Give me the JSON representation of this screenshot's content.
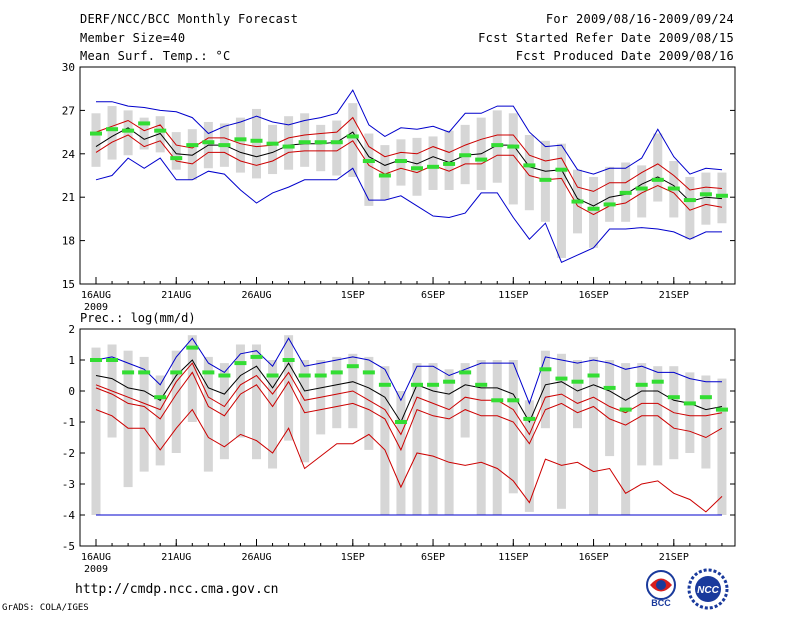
{
  "header": {
    "title": "DERF/NCC/BCC Monthly Forecast",
    "member": "Member Size=40",
    "variable": "Mean Surf. Temp.: °C",
    "period": "For 2009/08/16-2009/09/24",
    "refer": "Fcst Started Refer Date 2009/08/15",
    "produced": "Fcst Produced Date 2009/08/16"
  },
  "footer": {
    "url": "http://cmdp.ncc.cma.gov.cn",
    "credit": "GrADS: COLA/IGES",
    "logo_left": "BCC",
    "logo_right": "NCC"
  },
  "colors": {
    "envelope": "#0000cc",
    "spread": "#cc0000",
    "mean": "#000000",
    "obs": "#33dd33",
    "box": "#d6d6d6"
  },
  "chart_data": [
    {
      "type": "line",
      "title": "Mean Surf. Temp.: °C",
      "ylim": [
        15,
        30
      ],
      "yticks": [
        15,
        18,
        21,
        24,
        27,
        30
      ],
      "xticks": [
        {
          "day": 0,
          "label": "16AUG",
          "sub": "2009"
        },
        {
          "day": 5,
          "label": "21AUG"
        },
        {
          "day": 10,
          "label": "26AUG"
        },
        {
          "day": 16,
          "label": "1SEP"
        },
        {
          "day": 21,
          "label": "6SEP"
        },
        {
          "day": 26,
          "label": "11SEP"
        },
        {
          "day": 31,
          "label": "16SEP"
        },
        {
          "day": 36,
          "label": "21SEP"
        }
      ],
      "n_days": 40,
      "series": [
        {
          "name": "max",
          "color": "#0000cc",
          "values": [
            27.6,
            27.6,
            27.3,
            27.2,
            27.0,
            26.9,
            26.5,
            25.4,
            25.9,
            26.2,
            26.6,
            26.2,
            26.0,
            26.3,
            26.5,
            26.8,
            28.4,
            26.0,
            25.2,
            25.8,
            25.7,
            25.9,
            25.5,
            26.8,
            26.8,
            27.3,
            27.3,
            25.5,
            24.5,
            24.6,
            22.9,
            22.6,
            23.0,
            23.0,
            23.7,
            25.7,
            23.8,
            22.6,
            23.0,
            22.9
          ]
        },
        {
          "name": "upper",
          "color": "#cc0000",
          "values": [
            25.5,
            25.9,
            26.3,
            25.6,
            26.0,
            24.6,
            24.4,
            25.1,
            25.1,
            24.7,
            24.5,
            24.6,
            25.1,
            25.3,
            25.4,
            25.5,
            26.5,
            24.5,
            23.8,
            24.1,
            24.0,
            24.5,
            24.1,
            24.6,
            25.0,
            25.3,
            25.3,
            23.9,
            23.5,
            23.7,
            21.7,
            21.4,
            22.0,
            22.0,
            22.7,
            23.3,
            22.5,
            21.5,
            21.7,
            21.6
          ]
        },
        {
          "name": "mean",
          "color": "#000000",
          "values": [
            24.5,
            25.2,
            25.8,
            25.0,
            25.4,
            24.0,
            23.9,
            24.6,
            24.6,
            24.1,
            23.8,
            24.1,
            24.6,
            24.7,
            24.7,
            24.8,
            25.5,
            23.8,
            23.2,
            23.6,
            23.3,
            23.8,
            23.4,
            23.9,
            24.0,
            24.6,
            24.6,
            23.1,
            22.8,
            22.9,
            20.9,
            20.4,
            21.0,
            21.2,
            21.9,
            22.4,
            21.8,
            20.7,
            21.0,
            20.9
          ]
        },
        {
          "name": "lower",
          "color": "#cc0000",
          "values": [
            24.1,
            24.8,
            25.3,
            24.5,
            24.9,
            23.5,
            23.3,
            24.1,
            24.1,
            23.5,
            23.2,
            23.5,
            24.1,
            24.2,
            24.2,
            24.2,
            24.9,
            23.2,
            22.6,
            23.0,
            22.7,
            23.2,
            22.8,
            23.3,
            23.3,
            23.9,
            23.9,
            22.5,
            22.2,
            22.3,
            20.4,
            19.8,
            20.4,
            20.6,
            21.3,
            21.8,
            21.3,
            20.1,
            20.5,
            20.3
          ]
        },
        {
          "name": "min",
          "color": "#0000cc",
          "values": [
            22.2,
            22.5,
            23.7,
            23.0,
            23.7,
            22.2,
            22.2,
            22.8,
            22.6,
            21.5,
            20.6,
            21.3,
            21.7,
            22.2,
            22.2,
            22.2,
            23.0,
            20.8,
            20.8,
            21.1,
            20.4,
            19.7,
            19.6,
            19.9,
            21.3,
            21.3,
            19.6,
            18.1,
            19.2,
            16.5,
            17.0,
            17.5,
            18.8,
            18.8,
            18.9,
            18.8,
            18.6,
            18.1,
            18.6,
            18.6
          ]
        },
        {
          "name": "obs",
          "color": "#33dd33",
          "values": [
            25.4,
            25.7,
            25.6,
            26.1,
            25.6,
            23.7,
            24.6,
            24.8,
            24.6,
            25.0,
            24.9,
            24.7,
            24.5,
            24.8,
            24.8,
            24.8,
            25.2,
            23.5,
            22.5,
            23.5,
            23.0,
            23.1,
            23.3,
            23.9,
            23.6,
            24.6,
            24.5,
            23.2,
            22.2,
            22.9,
            20.7,
            20.2,
            20.5,
            21.3,
            21.6,
            22.2,
            21.6,
            20.8,
            21.2,
            21.1
          ]
        },
        {
          "name": "box_hi",
          "color": "#d6d6d6",
          "values": [
            26.8,
            27.3,
            27.0,
            26.5,
            26.6,
            25.5,
            25.7,
            26.2,
            26.1,
            26.5,
            27.1,
            26.0,
            26.6,
            26.8,
            26.0,
            26.3,
            27.5,
            25.4,
            24.6,
            25.0,
            25.1,
            25.2,
            25.6,
            26.0,
            26.5,
            27.0,
            26.8,
            25.3,
            24.9,
            24.7,
            22.9,
            22.4,
            23.1,
            23.4,
            23.2,
            25.4,
            23.5,
            22.4,
            22.7,
            22.7
          ]
        },
        {
          "name": "box_lo",
          "color": "#d6d6d6",
          "values": [
            23.1,
            23.6,
            23.9,
            24.3,
            24.1,
            22.9,
            22.2,
            23.0,
            23.1,
            22.7,
            22.3,
            22.6,
            22.9,
            23.1,
            22.8,
            22.5,
            22.4,
            20.4,
            20.8,
            21.8,
            21.1,
            21.5,
            21.5,
            21.9,
            21.5,
            22.0,
            20.5,
            20.1,
            19.3,
            16.8,
            18.5,
            17.5,
            19.3,
            19.3,
            19.6,
            20.7,
            19.6,
            18.1,
            19.1,
            19.2
          ]
        }
      ]
    },
    {
      "type": "line",
      "title": "Prec.: log(mm/d)",
      "ylim": [
        -5,
        2
      ],
      "yticks": [
        -5,
        -4,
        -3,
        -2,
        -1,
        0,
        1,
        2
      ],
      "xticks": [
        {
          "day": 0,
          "label": "16AUG",
          "sub": "2009"
        },
        {
          "day": 5,
          "label": "21AUG"
        },
        {
          "day": 10,
          "label": "26AUG"
        },
        {
          "day": 16,
          "label": "1SEP"
        },
        {
          "day": 21,
          "label": "6SEP"
        },
        {
          "day": 26,
          "label": "11SEP"
        },
        {
          "day": 31,
          "label": "16SEP"
        },
        {
          "day": 36,
          "label": "21SEP"
        }
      ],
      "n_days": 40,
      "series": [
        {
          "name": "max",
          "color": "#0000cc",
          "values": [
            1.0,
            1.1,
            0.9,
            0.7,
            0.2,
            1.1,
            1.7,
            0.9,
            0.6,
            1.2,
            1.3,
            0.8,
            1.7,
            0.8,
            0.9,
            1.0,
            1.1,
            1.0,
            0.7,
            -0.3,
            0.8,
            0.8,
            0.5,
            0.7,
            0.9,
            0.9,
            0.9,
            -0.4,
            1.1,
            1.0,
            0.9,
            1.0,
            0.9,
            0.7,
            0.8,
            0.6,
            0.6,
            0.4,
            0.3,
            0.3
          ]
        },
        {
          "name": "upper",
          "color": "#cc0000",
          "values": [
            0.2,
            0.0,
            -0.2,
            -0.4,
            -0.6,
            0.3,
            0.9,
            -0.2,
            -0.5,
            0.2,
            0.5,
            -0.1,
            0.6,
            -0.3,
            -0.2,
            -0.1,
            0.0,
            -0.3,
            -0.6,
            -1.4,
            -0.2,
            -0.4,
            -0.6,
            -0.2,
            -0.3,
            -0.3,
            -0.6,
            -1.4,
            -0.2,
            -0.1,
            -0.4,
            -0.2,
            -0.5,
            -0.7,
            -0.4,
            -0.4,
            -0.7,
            -0.8,
            -0.8,
            -0.7
          ]
        },
        {
          "name": "mean",
          "color": "#000000",
          "values": [
            0.5,
            0.4,
            0.1,
            0.0,
            -0.3,
            0.5,
            1.0,
            0.1,
            -0.1,
            0.5,
            0.8,
            0.1,
            0.9,
            0.0,
            0.1,
            0.2,
            0.3,
            0.1,
            -0.2,
            -1.0,
            0.2,
            0.0,
            -0.1,
            0.2,
            0.1,
            0.1,
            -0.1,
            -1.0,
            0.2,
            0.3,
            0.0,
            0.2,
            0.0,
            -0.3,
            0.0,
            0.0,
            -0.3,
            -0.4,
            -0.6,
            -0.5
          ]
        },
        {
          "name": "lower",
          "color": "#cc0000",
          "values": [
            0.1,
            -0.1,
            -0.4,
            -0.5,
            -0.9,
            -0.1,
            0.6,
            -0.5,
            -0.8,
            -0.1,
            0.2,
            -0.5,
            0.3,
            -0.7,
            -0.6,
            -0.5,
            -0.4,
            -0.6,
            -0.9,
            -1.9,
            -0.6,
            -0.8,
            -0.9,
            -0.6,
            -0.8,
            -0.8,
            -1.0,
            -1.7,
            -0.6,
            -0.4,
            -0.7,
            -0.5,
            -0.9,
            -1.1,
            -0.8,
            -0.8,
            -1.2,
            -1.3,
            -1.5,
            -1.2
          ]
        },
        {
          "name": "min",
          "color": "#0000cc",
          "values": [
            -4.0,
            -4.0,
            -4.0,
            -4.0,
            -4.0,
            -4.0,
            -4.0,
            -4.0,
            -4.0,
            -4.0,
            -4.0,
            -4.0,
            -4.0,
            -4.0,
            -4.0,
            -4.0,
            -4.0,
            -4.0,
            -4.0,
            -4.0,
            -4.0,
            -4.0,
            -4.0,
            -4.0,
            -4.0,
            -4.0,
            -4.0,
            -4.0,
            -4.0,
            -4.0,
            -4.0,
            -4.0,
            -4.0,
            -4.0,
            -4.0,
            -4.0,
            -4.0,
            -4.0,
            -4.0,
            -4.0
          ]
        },
        {
          "name": "low_env",
          "color": "#cc0000",
          "values": [
            -0.6,
            -0.8,
            -1.2,
            -1.2,
            -1.9,
            -1.2,
            -0.6,
            -1.5,
            -1.8,
            -1.4,
            -1.6,
            -2.0,
            -1.2,
            -2.5,
            -2.1,
            -1.7,
            -1.7,
            -1.4,
            -1.9,
            -3.1,
            -2.0,
            -2.1,
            -2.3,
            -2.4,
            -2.3,
            -2.5,
            -2.9,
            -3.6,
            -2.2,
            -2.4,
            -2.3,
            -2.6,
            -2.5,
            -3.3,
            -3.0,
            -2.9,
            -3.3,
            -3.5,
            -3.9,
            -3.4
          ]
        },
        {
          "name": "obs",
          "color": "#33dd33",
          "values": [
            1.0,
            1.0,
            0.6,
            0.6,
            -0.2,
            0.6,
            1.4,
            0.6,
            0.5,
            0.9,
            1.1,
            0.5,
            1.0,
            0.5,
            0.5,
            0.6,
            0.8,
            0.6,
            0.2,
            -1.0,
            0.2,
            0.2,
            0.3,
            0.6,
            0.2,
            -0.3,
            -0.3,
            -0.9,
            0.7,
            0.4,
            0.3,
            0.5,
            0.1,
            -0.6,
            0.2,
            0.3,
            -0.2,
            -0.4,
            -0.2,
            -0.6
          ]
        },
        {
          "name": "box_hi",
          "color": "#d6d6d6",
          "values": [
            1.4,
            1.5,
            1.3,
            1.1,
            0.5,
            1.3,
            1.8,
            1.1,
            0.9,
            1.5,
            1.5,
            1.0,
            1.8,
            1.0,
            1.0,
            1.1,
            1.2,
            1.1,
            0.8,
            0.0,
            0.9,
            0.9,
            0.7,
            0.9,
            1.0,
            1.0,
            1.0,
            -0.3,
            1.3,
            1.2,
            1.0,
            1.1,
            1.0,
            0.9,
            0.9,
            0.8,
            0.8,
            0.6,
            0.5,
            0.4
          ]
        },
        {
          "name": "box_lo",
          "color": "#d6d6d6",
          "values": [
            -4.0,
            -1.5,
            -3.1,
            -2.6,
            -2.4,
            -2.0,
            -1.0,
            -2.6,
            -2.2,
            -1.5,
            -2.2,
            -2.5,
            -1.6,
            -2.3,
            -1.4,
            -1.2,
            -1.2,
            -1.9,
            -4.0,
            -4.0,
            -4.0,
            -4.0,
            -4.0,
            -1.5,
            -4.0,
            -4.0,
            -3.3,
            -3.9,
            -1.2,
            -3.8,
            -1.2,
            -4.0,
            -2.1,
            -4.0,
            -2.4,
            -2.4,
            -2.2,
            -2.0,
            -2.5,
            -4.0
          ]
        }
      ]
    }
  ]
}
